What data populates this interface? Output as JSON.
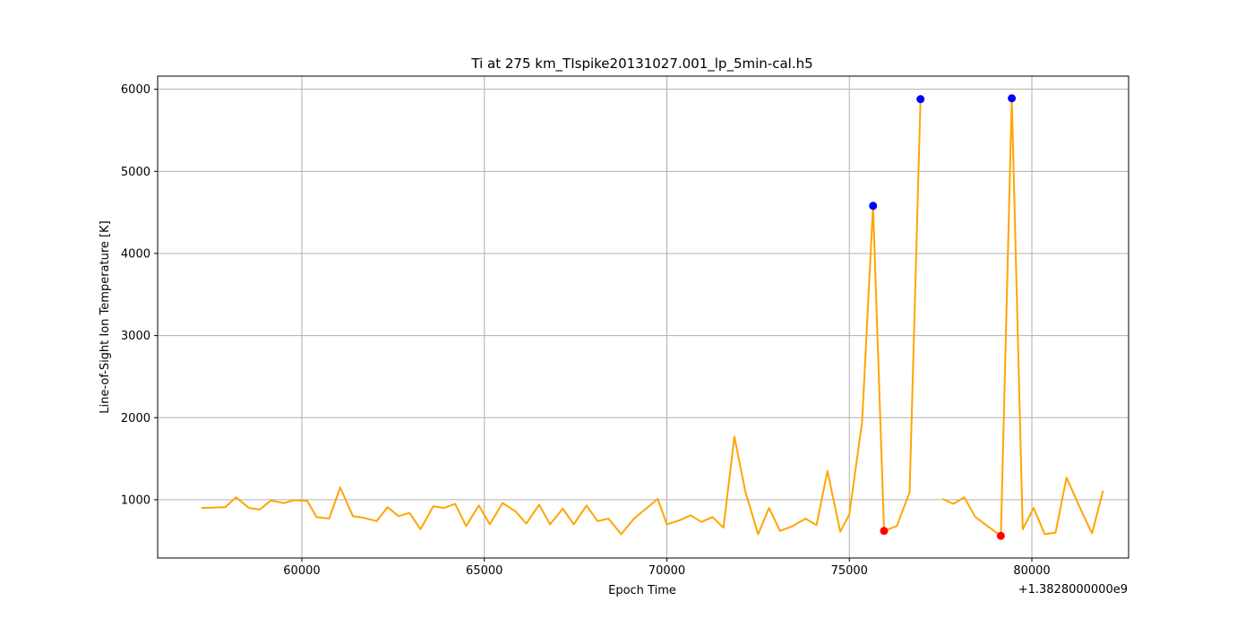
{
  "chart_data": {
    "type": "line",
    "title": "Ti at 275 km_TIspike20131027.001_lp_5min-cal.h5",
    "xlabel": "Epoch Time",
    "ylabel": "Line-of-Sight Ion Temperature [K]",
    "x_offset_label": "+1.3828000000e9",
    "xlim": [
      56050,
      82650
    ],
    "ylim": [
      290,
      6160
    ],
    "xticks": [
      60000,
      65000,
      70000,
      75000,
      80000
    ],
    "yticks": [
      1000,
      2000,
      3000,
      4000,
      5000,
      6000
    ],
    "grid": true,
    "series": [
      {
        "color": "#ffa500",
        "segments": [
          [
            [
              57250,
              900
            ],
            [
              57900,
              910
            ],
            [
              58200,
              1030
            ],
            [
              58550,
              900
            ],
            [
              58850,
              880
            ],
            [
              59150,
              990
            ],
            [
              59500,
              960
            ],
            [
              59800,
              995
            ],
            [
              60150,
              985
            ],
            [
              60400,
              790
            ],
            [
              60750,
              770
            ],
            [
              61050,
              1150
            ],
            [
              61400,
              800
            ],
            [
              61700,
              780
            ],
            [
              62050,
              740
            ],
            [
              62350,
              910
            ],
            [
              62650,
              800
            ],
            [
              62950,
              840
            ],
            [
              63250,
              640
            ],
            [
              63600,
              920
            ],
            [
              63900,
              900
            ],
            [
              64200,
              950
            ],
            [
              64500,
              680
            ],
            [
              64850,
              930
            ],
            [
              65150,
              700
            ],
            [
              65500,
              960
            ],
            [
              65850,
              860
            ],
            [
              66150,
              710
            ],
            [
              66500,
              940
            ],
            [
              66800,
              700
            ],
            [
              67150,
              890
            ],
            [
              67450,
              700
            ],
            [
              67800,
              930
            ],
            [
              68100,
              740
            ],
            [
              68400,
              770
            ],
            [
              68750,
              580
            ],
            [
              69100,
              770
            ],
            [
              69400,
              880
            ],
            [
              69750,
              1010
            ],
            [
              70000,
              700
            ],
            [
              70350,
              750
            ],
            [
              70650,
              810
            ],
            [
              70950,
              730
            ],
            [
              71250,
              790
            ],
            [
              71550,
              660
            ],
            [
              71850,
              1770
            ],
            [
              72150,
              1100
            ],
            [
              72500,
              580
            ],
            [
              72800,
              900
            ],
            [
              73100,
              620
            ],
            [
              73450,
              680
            ],
            [
              73800,
              770
            ],
            [
              74100,
              690
            ],
            [
              74400,
              1350
            ],
            [
              74750,
              610
            ],
            [
              75000,
              820
            ],
            [
              75350,
              1950
            ],
            [
              75650,
              4580
            ],
            [
              75950,
              620
            ],
            [
              76300,
              680
            ],
            [
              76650,
              1090
            ],
            [
              76950,
              5880
            ]
          ],
          [
            [
              77550,
              1010
            ],
            [
              77850,
              950
            ],
            [
              78150,
              1030
            ],
            [
              78450,
              790
            ],
            [
              79150,
              560
            ],
            [
              79450,
              5890
            ],
            [
              79750,
              640
            ],
            [
              80050,
              900
            ],
            [
              80350,
              580
            ],
            [
              80650,
              600
            ],
            [
              80950,
              1270
            ],
            [
              81350,
              870
            ],
            [
              81650,
              590
            ],
            [
              81950,
              1110
            ]
          ]
        ]
      }
    ],
    "markers": {
      "maxima": {
        "color": "#0000ff",
        "points": [
          [
            75650,
            4580
          ],
          [
            76950,
            5880
          ],
          [
            79450,
            5890
          ]
        ]
      },
      "minima": {
        "color": "#ff0000",
        "points": [
          [
            75950,
            620
          ],
          [
            79150,
            560
          ]
        ]
      }
    }
  }
}
